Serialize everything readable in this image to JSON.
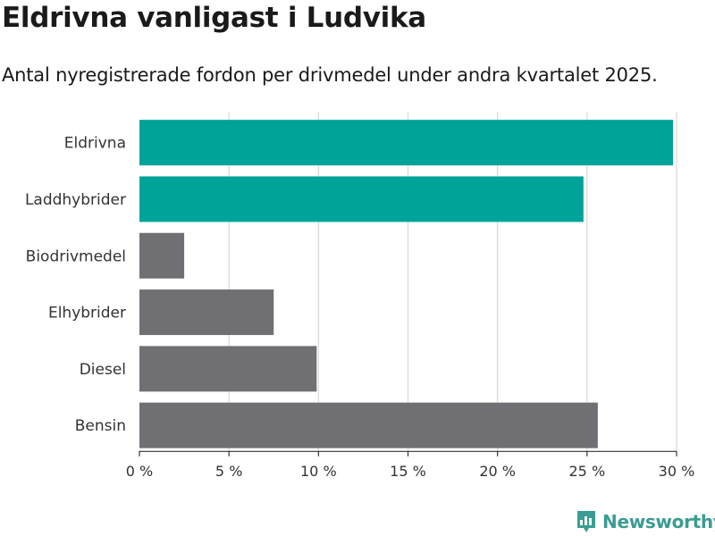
{
  "title": "Eldrivna vanligast i Ludvika",
  "subtitle": "Antal nyregistrerade fordon per drivmedel under andra kvartalet 2025.",
  "brand": "Newsworthy",
  "colors": {
    "highlight": "#00a398",
    "default": "#706f74",
    "grid": "#dcdcdc",
    "brand": "#3a9c92"
  },
  "chart_data": {
    "type": "bar",
    "orientation": "horizontal",
    "categories": [
      "Eldrivna",
      "Laddhybrider",
      "Biodrivmedel",
      "Elhybrider",
      "Diesel",
      "Bensin"
    ],
    "values": [
      29.8,
      24.8,
      2.5,
      7.5,
      9.9,
      25.6
    ],
    "highlighted": [
      true,
      true,
      false,
      false,
      false,
      false
    ],
    "xlim": [
      0,
      30
    ],
    "xticks": [
      0,
      5,
      10,
      15,
      20,
      25,
      30
    ],
    "xtick_labels": [
      "0 %",
      "5 %",
      "10 %",
      "15 %",
      "20 %",
      "25 %",
      "30 %"
    ],
    "grid": true
  }
}
